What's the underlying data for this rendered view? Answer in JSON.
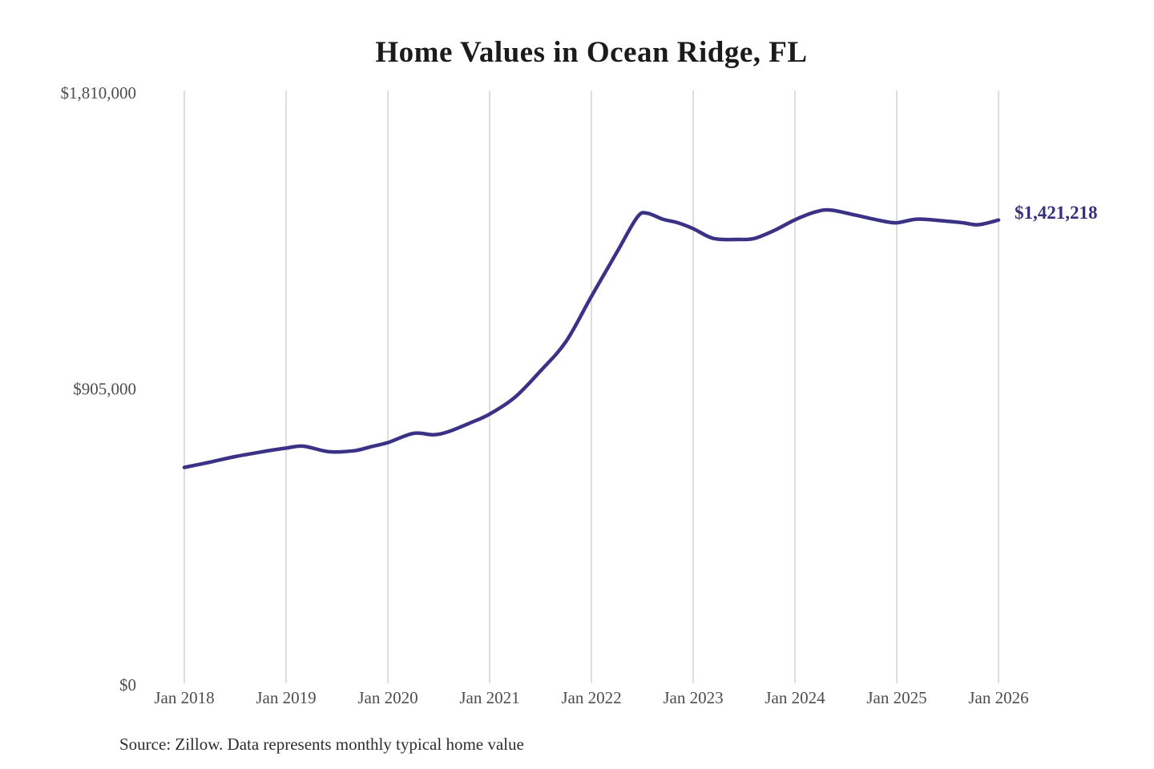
{
  "title": "Home Values in Ocean Ridge, FL",
  "source_note": "Source: Zillow. Data represents monthly typical home value",
  "colors": {
    "line": "#3b3286",
    "grid": "#cbcbcb",
    "axis_text": "#4d4d4d",
    "title_text": "#1b1b1b",
    "end_label_text": "#35307f",
    "background": "#ffffff"
  },
  "chart_data": {
    "type": "line",
    "title": "Home Values in Ocean Ridge, FL",
    "xlabel": "",
    "ylabel": "",
    "unit": "USD",
    "grid": "vertical-only",
    "legend": "none",
    "xlim": [
      2018,
      2026
    ],
    "ylim": [
      0,
      1810000
    ],
    "x_ticks": [
      {
        "x": 2018,
        "label": "Jan 2018"
      },
      {
        "x": 2019,
        "label": "Jan 2019"
      },
      {
        "x": 2020,
        "label": "Jan 2020"
      },
      {
        "x": 2021,
        "label": "Jan 2021"
      },
      {
        "x": 2022,
        "label": "Jan 2022"
      },
      {
        "x": 2023,
        "label": "Jan 2023"
      },
      {
        "x": 2024,
        "label": "Jan 2024"
      },
      {
        "x": 2025,
        "label": "Jan 2025"
      },
      {
        "x": 2026,
        "label": "Jan 2026"
      }
    ],
    "y_ticks": [
      {
        "value": 0,
        "label": "$0"
      },
      {
        "value": 905000,
        "label": "$905,000"
      },
      {
        "value": 1810000,
        "label": "$1,810,000"
      }
    ],
    "end_label": "$1,421,218",
    "latest_value": 1421218,
    "series": [
      {
        "name": "Monthly typical home value",
        "points": [
          [
            2018.0,
            665000
          ],
          [
            2018.25,
            681000
          ],
          [
            2018.5,
            698000
          ],
          [
            2018.75,
            712000
          ],
          [
            2019.0,
            724000
          ],
          [
            2019.17,
            730000
          ],
          [
            2019.42,
            713000
          ],
          [
            2019.67,
            716000
          ],
          [
            2019.83,
            728000
          ],
          [
            2020.0,
            741000
          ],
          [
            2020.25,
            769000
          ],
          [
            2020.45,
            765000
          ],
          [
            2020.6,
            775000
          ],
          [
            2020.8,
            800000
          ],
          [
            2021.0,
            828000
          ],
          [
            2021.25,
            880000
          ],
          [
            2021.5,
            960000
          ],
          [
            2021.75,
            1050000
          ],
          [
            2022.0,
            1188000
          ],
          [
            2022.25,
            1323000
          ],
          [
            2022.45,
            1430000
          ],
          [
            2022.55,
            1442000
          ],
          [
            2022.7,
            1424000
          ],
          [
            2022.85,
            1413000
          ],
          [
            2023.0,
            1395000
          ],
          [
            2023.2,
            1365000
          ],
          [
            2023.45,
            1362000
          ],
          [
            2023.6,
            1365000
          ],
          [
            2023.8,
            1390000
          ],
          [
            2024.0,
            1422000
          ],
          [
            2024.2,
            1446000
          ],
          [
            2024.35,
            1452000
          ],
          [
            2024.6,
            1436000
          ],
          [
            2024.85,
            1419000
          ],
          [
            2025.0,
            1413000
          ],
          [
            2025.2,
            1424000
          ],
          [
            2025.45,
            1419000
          ],
          [
            2025.65,
            1413000
          ],
          [
            2025.8,
            1407000
          ],
          [
            2026.0,
            1421218
          ]
        ]
      }
    ]
  }
}
